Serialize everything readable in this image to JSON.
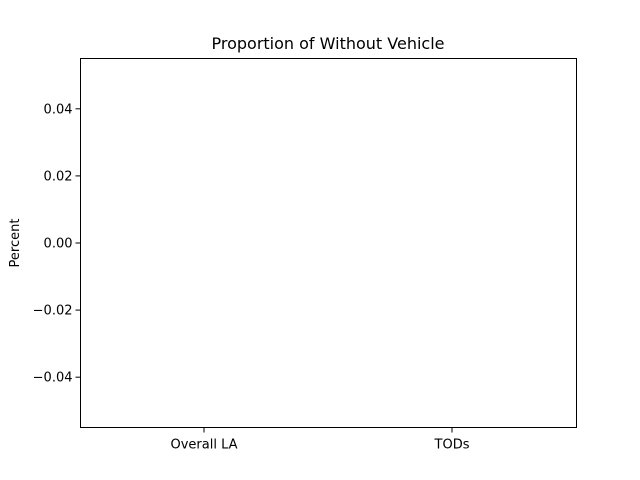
{
  "chart_data": {
    "type": "bar",
    "title": "Proportion of Without Vehicle",
    "xlabel": "",
    "ylabel": "Percent",
    "categories": [
      "Overall LA",
      "TODs"
    ],
    "values": [
      0,
      0
    ],
    "ylim": [
      -0.055,
      0.055
    ],
    "yticks": [
      -0.04,
      -0.02,
      0.0,
      0.02,
      0.04
    ],
    "ytick_labels": [
      "−0.04",
      "−0.02",
      "0.00",
      "0.02",
      "0.04"
    ],
    "grid": false,
    "legend": "none",
    "colors": {
      "bar": "#1f77b4",
      "axis": "#000000",
      "background": "#ffffff"
    }
  }
}
